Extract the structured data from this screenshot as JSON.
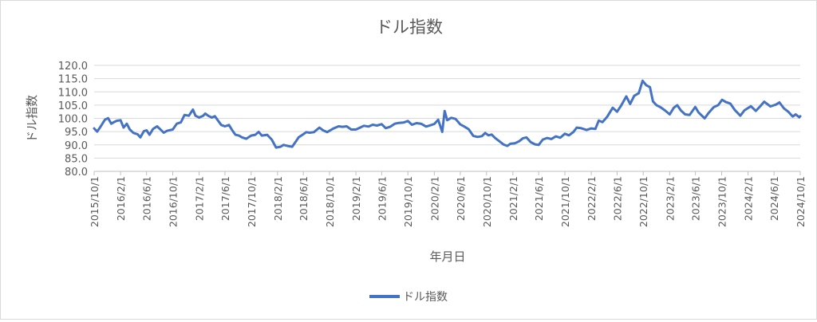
{
  "chart_data": {
    "type": "line",
    "title": "ドル指数",
    "xlabel": "年月日",
    "ylabel": "ドル指数",
    "ylim": [
      80,
      120
    ],
    "ytick_step": 5,
    "yticks": [
      "80.0",
      "85.0",
      "90.0",
      "95.0",
      "100.0",
      "105.0",
      "110.0",
      "115.0",
      "120.0"
    ],
    "x_ticks": [
      "2015/10/1",
      "2016/2/1",
      "2016/6/1",
      "2016/10/1",
      "2017/2/1",
      "2017/6/1",
      "2017/10/1",
      "2018/2/1",
      "2018/6/1",
      "2018/10/1",
      "2019/2/1",
      "2019/6/1",
      "2019/10/1",
      "2020/2/1",
      "2020/6/1",
      "2020/10/1",
      "2021/2/1",
      "2021/6/1",
      "2021/10/1",
      "2022/2/1",
      "2022/6/1",
      "2022/10/1",
      "2023/2/1",
      "2023/6/1",
      "2023/10/1",
      "2024/2/1",
      "2024/6/1",
      "2024/10/1"
    ],
    "x_range": [
      "2015/10/1",
      "2024/10/1"
    ],
    "grid": true,
    "legend_position": "bottom",
    "line_color": "#4472c4",
    "series": [
      {
        "name": "ドル指数",
        "points": [
          [
            "2015/10/1",
            96.2
          ],
          [
            "2015/10/15",
            95.0
          ],
          [
            "2015/11/1",
            97.0
          ],
          [
            "2015/11/20",
            99.5
          ],
          [
            "2015/12/5",
            100.1
          ],
          [
            "2015/12/20",
            98.0
          ],
          [
            "2016/1/1",
            98.6
          ],
          [
            "2016/1/15",
            99.1
          ],
          [
            "2016/2/1",
            99.3
          ],
          [
            "2016/2/15",
            96.5
          ],
          [
            "2016/3/1",
            98.0
          ],
          [
            "2016/3/15",
            95.8
          ],
          [
            "2016/4/1",
            94.5
          ],
          [
            "2016/4/20",
            94.0
          ],
          [
            "2016/5/3",
            92.8
          ],
          [
            "2016/5/20",
            95.2
          ],
          [
            "2016/6/1",
            95.5
          ],
          [
            "2016/6/15",
            93.8
          ],
          [
            "2016/7/1",
            96.0
          ],
          [
            "2016/7/20",
            97.0
          ],
          [
            "2016/8/5",
            95.8
          ],
          [
            "2016/8/20",
            94.6
          ],
          [
            "2016/9/5",
            95.3
          ],
          [
            "2016/10/1",
            95.8
          ],
          [
            "2016/10/20",
            98.0
          ],
          [
            "2016/11/8",
            98.5
          ],
          [
            "2016/11/25",
            101.3
          ],
          [
            "2016/12/15",
            101.0
          ],
          [
            "2017/1/3",
            103.3
          ],
          [
            "2017/1/15",
            101.0
          ],
          [
            "2017/2/1",
            100.3
          ],
          [
            "2017/2/20",
            101.0
          ],
          [
            "2017/3/1",
            101.8
          ],
          [
            "2017/3/15",
            101.0
          ],
          [
            "2017/4/1",
            100.3
          ],
          [
            "2017/4/15",
            100.8
          ],
          [
            "2017/5/1",
            99.0
          ],
          [
            "2017/5/15",
            97.5
          ],
          [
            "2017/6/1",
            97.0
          ],
          [
            "2017/6/20",
            97.5
          ],
          [
            "2017/7/5",
            95.5
          ],
          [
            "2017/7/20",
            93.8
          ],
          [
            "2017/8/5",
            93.5
          ],
          [
            "2017/8/20",
            92.8
          ],
          [
            "2017/9/8",
            92.3
          ],
          [
            "2017/10/1",
            93.5
          ],
          [
            "2017/10/20",
            93.8
          ],
          [
            "2017/11/5",
            94.9
          ],
          [
            "2017/11/20",
            93.5
          ],
          [
            "2017/12/15",
            93.8
          ],
          [
            "2018/1/5",
            92.0
          ],
          [
            "2018/1/25",
            89.0
          ],
          [
            "2018/2/15",
            89.3
          ],
          [
            "2018/3/1",
            90.0
          ],
          [
            "2018/3/20",
            89.6
          ],
          [
            "2018/4/10",
            89.3
          ],
          [
            "2018/4/25",
            91.0
          ],
          [
            "2018/5/10",
            92.8
          ],
          [
            "2018/6/1",
            94.0
          ],
          [
            "2018/6/15",
            94.8
          ],
          [
            "2018/7/1",
            94.6
          ],
          [
            "2018/7/20",
            94.8
          ],
          [
            "2018/8/15",
            96.5
          ],
          [
            "2018/9/1",
            95.5
          ],
          [
            "2018/9/20",
            94.8
          ],
          [
            "2018/10/1",
            95.3
          ],
          [
            "2018/10/20",
            96.2
          ],
          [
            "2018/11/12",
            97.0
          ],
          [
            "2018/12/1",
            96.8
          ],
          [
            "2018/12/20",
            97.0
          ],
          [
            "2019/1/10",
            95.8
          ],
          [
            "2019/2/1",
            95.8
          ],
          [
            "2019/2/20",
            96.5
          ],
          [
            "2019/3/10",
            97.2
          ],
          [
            "2019/4/1",
            96.9
          ],
          [
            "2019/4/20",
            97.6
          ],
          [
            "2019/5/10",
            97.3
          ],
          [
            "2019/6/1",
            97.8
          ],
          [
            "2019/6/20",
            96.3
          ],
          [
            "2019/7/10",
            96.8
          ],
          [
            "2019/8/1",
            98.0
          ],
          [
            "2019/8/20",
            98.3
          ],
          [
            "2019/9/10",
            98.4
          ],
          [
            "2019/10/1",
            99.0
          ],
          [
            "2019/10/20",
            97.6
          ],
          [
            "2019/11/10",
            98.2
          ],
          [
            "2019/12/1",
            98.0
          ],
          [
            "2019/12/25",
            96.9
          ],
          [
            "2020/1/15",
            97.4
          ],
          [
            "2020/2/1",
            97.9
          ],
          [
            "2020/2/19",
            99.5
          ],
          [
            "2020/3/9",
            94.9
          ],
          [
            "2020/3/20",
            102.8
          ],
          [
            "2020/4/1",
            99.3
          ],
          [
            "2020/4/20",
            100.2
          ],
          [
            "2020/5/10",
            99.8
          ],
          [
            "2020/6/1",
            97.7
          ],
          [
            "2020/6/20",
            96.9
          ],
          [
            "2020/7/10",
            95.9
          ],
          [
            "2020/7/31",
            93.4
          ],
          [
            "2020/8/20",
            93.0
          ],
          [
            "2020/9/10",
            93.3
          ],
          [
            "2020/9/25",
            94.5
          ],
          [
            "2020/10/10",
            93.6
          ],
          [
            "2020/10/25",
            93.9
          ],
          [
            "2020/11/10",
            92.6
          ],
          [
            "2020/12/1",
            91.3
          ],
          [
            "2020/12/20",
            90.1
          ],
          [
            "2021/1/6",
            89.6
          ],
          [
            "2021/1/20",
            90.4
          ],
          [
            "2021/2/10",
            90.6
          ],
          [
            "2021/3/1",
            91.3
          ],
          [
            "2021/3/20",
            92.5
          ],
          [
            "2021/4/5",
            92.8
          ],
          [
            "2021/4/25",
            91.0
          ],
          [
            "2021/5/15",
            90.2
          ],
          [
            "2021/6/1",
            90.0
          ],
          [
            "2021/6/20",
            92.0
          ],
          [
            "2021/7/10",
            92.6
          ],
          [
            "2021/7/30",
            92.2
          ],
          [
            "2021/8/20",
            93.2
          ],
          [
            "2021/9/10",
            92.7
          ],
          [
            "2021/10/1",
            94.2
          ],
          [
            "2021/10/20",
            93.6
          ],
          [
            "2021/11/10",
            94.9
          ],
          [
            "2021/11/25",
            96.5
          ],
          [
            "2021/12/15",
            96.3
          ],
          [
            "2022/1/10",
            95.6
          ],
          [
            "2022/2/1",
            96.2
          ],
          [
            "2022/2/20",
            96.0
          ],
          [
            "2022/3/8",
            99.2
          ],
          [
            "2022/3/25",
            98.6
          ],
          [
            "2022/4/15",
            100.5
          ],
          [
            "2022/5/12",
            104.0
          ],
          [
            "2022/6/1",
            102.5
          ],
          [
            "2022/6/20",
            104.8
          ],
          [
            "2022/7/14",
            108.3
          ],
          [
            "2022/8/1",
            105.4
          ],
          [
            "2022/8/20",
            108.5
          ],
          [
            "2022/9/10",
            109.5
          ],
          [
            "2022/9/28",
            114.2
          ],
          [
            "2022/10/15",
            112.5
          ],
          [
            "2022/11/1",
            111.8
          ],
          [
            "2022/11/15",
            106.4
          ],
          [
            "2022/12/1",
            105.0
          ],
          [
            "2022/12/20",
            104.2
          ],
          [
            "2023/1/10",
            103.0
          ],
          [
            "2023/2/1",
            101.5
          ],
          [
            "2023/2/20",
            104.0
          ],
          [
            "2023/3/8",
            105.0
          ],
          [
            "2023/3/25",
            103.0
          ],
          [
            "2023/4/14",
            101.5
          ],
          [
            "2023/5/5",
            101.3
          ],
          [
            "2023/5/31",
            104.3
          ],
          [
            "2023/6/15",
            102.3
          ],
          [
            "2023/7/14",
            100.0
          ],
          [
            "2023/8/1",
            102.0
          ],
          [
            "2023/8/25",
            104.2
          ],
          [
            "2023/9/15",
            105.0
          ],
          [
            "2023/10/3",
            107.0
          ],
          [
            "2023/10/20",
            106.2
          ],
          [
            "2023/11/10",
            105.6
          ],
          [
            "2023/12/1",
            103.2
          ],
          [
            "2023/12/27",
            101.0
          ],
          [
            "2024/1/15",
            103.0
          ],
          [
            "2024/2/14",
            104.6
          ],
          [
            "2024/3/8",
            102.8
          ],
          [
            "2024/3/28",
            104.5
          ],
          [
            "2024/4/16",
            106.3
          ],
          [
            "2024/5/15",
            104.5
          ],
          [
            "2024/6/10",
            105.2
          ],
          [
            "2024/6/26",
            106.0
          ],
          [
            "2024/7/17",
            103.8
          ],
          [
            "2024/8/5",
            102.6
          ],
          [
            "2024/8/27",
            100.7
          ],
          [
            "2024/9/10",
            101.5
          ],
          [
            "2024/9/27",
            100.4
          ],
          [
            "2024/10/1",
            100.8
          ]
        ]
      }
    ]
  }
}
